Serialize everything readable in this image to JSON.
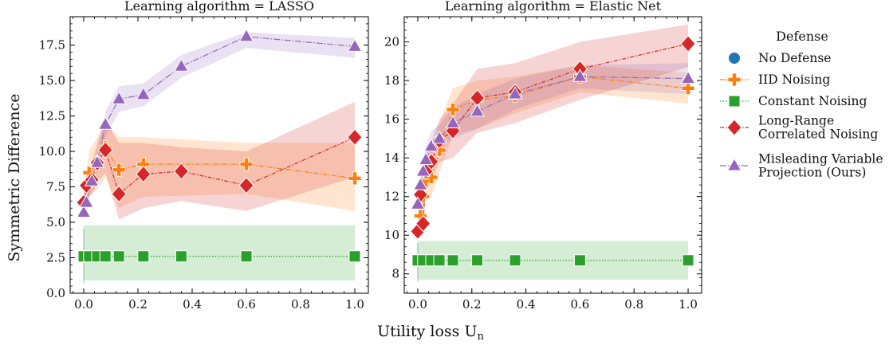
{
  "figure": {
    "xlabel": "Utility loss U",
    "xlabel_sub": "n",
    "ylabel": "Symmetric Difference"
  },
  "legend": {
    "title": "Defense",
    "entries": [
      {
        "key": "no_defense",
        "lines": [
          "No Defense"
        ]
      },
      {
        "key": "iid",
        "lines": [
          "IID Noising"
        ]
      },
      {
        "key": "constant",
        "lines": [
          "Constant Noising"
        ]
      },
      {
        "key": "long_range",
        "lines": [
          "Long-Range",
          "Correlated Noising"
        ]
      },
      {
        "key": "mvp",
        "lines": [
          "Misleading Variable",
          "Projection (Ours)"
        ]
      }
    ]
  },
  "styles": {
    "no_defense": {
      "color": "#1f77b4",
      "marker": "circle",
      "dash": "none"
    },
    "iid": {
      "color": "#ff7f0e",
      "marker": "plus",
      "dash": "6,2,1.5,2"
    },
    "constant": {
      "color": "#2ca02c",
      "marker": "square",
      "dash": "1.5,2"
    },
    "long_range": {
      "color": "#d62728",
      "marker": "diamond",
      "dash": "5,2,1.5,2"
    },
    "mvp": {
      "color": "#9467bd",
      "marker": "triangle",
      "dash": "8,2,1.5,2"
    }
  },
  "chart_data": [
    {
      "type": "line",
      "title": "Learning algorithm = LASSO",
      "xlim": [
        -0.05,
        1.05
      ],
      "ylim": [
        0.0,
        19.5
      ],
      "xticks": [
        "0.0",
        "0.2",
        "0.4",
        "0.6",
        "0.8",
        "1.0"
      ],
      "yticks": [
        "0.0",
        "2.5",
        "5.0",
        "7.5",
        "10.0",
        "12.5",
        "15.0",
        "17.5"
      ],
      "series": [
        {
          "key": "no_defense",
          "x": [
            0.0
          ],
          "y": [
            2.6
          ],
          "lower": [
            0.7
          ],
          "upper": [
            4.6
          ]
        },
        {
          "key": "constant",
          "x": [
            0.0,
            0.02,
            0.05,
            0.08,
            0.13,
            0.22,
            0.36,
            0.6,
            1.0
          ],
          "y": [
            2.6,
            2.6,
            2.6,
            2.6,
            2.6,
            2.6,
            2.6,
            2.6,
            2.6
          ],
          "lower": [
            0.9,
            0.9,
            0.9,
            0.9,
            0.9,
            0.9,
            0.9,
            0.9,
            0.9
          ],
          "upper": [
            4.8,
            4.8,
            4.8,
            4.8,
            4.8,
            4.8,
            4.8,
            4.8,
            4.8
          ]
        },
        {
          "key": "iid",
          "x": [
            0.0,
            0.02,
            0.05,
            0.08,
            0.13,
            0.22,
            0.6,
            1.0
          ],
          "y": [
            6.3,
            8.5,
            9.2,
            10.3,
            8.7,
            9.1,
            9.1,
            8.1
          ],
          "lower": [
            5.6,
            7.0,
            7.3,
            8.2,
            6.0,
            6.8,
            7.0,
            5.8
          ],
          "upper": [
            7.0,
            10.0,
            11.0,
            12.0,
            11.0,
            11.0,
            10.6,
            10.6
          ]
        },
        {
          "key": "long_range",
          "x": [
            0.0,
            0.01,
            0.03,
            0.05,
            0.08,
            0.13,
            0.22,
            0.36,
            0.6,
            1.0
          ],
          "y": [
            6.4,
            7.6,
            8.0,
            9.2,
            10.1,
            7.0,
            8.4,
            8.6,
            7.6,
            11.0
          ],
          "lower": [
            5.8,
            6.8,
            6.9,
            7.8,
            8.5,
            5.2,
            6.0,
            6.5,
            5.8,
            8.2
          ],
          "upper": [
            7.0,
            8.4,
            9.2,
            10.6,
            12.2,
            10.6,
            10.6,
            10.3,
            10.0,
            13.5
          ]
        },
        {
          "key": "mvp",
          "x": [
            0.0,
            0.01,
            0.03,
            0.05,
            0.08,
            0.13,
            0.22,
            0.36,
            0.6,
            1.0
          ],
          "y": [
            5.7,
            6.4,
            7.9,
            9.2,
            11.9,
            13.7,
            14.0,
            16.0,
            18.1,
            17.4
          ],
          "lower": [
            5.4,
            6.0,
            7.3,
            8.4,
            11.0,
            12.8,
            13.2,
            15.2,
            17.3,
            16.6
          ],
          "upper": [
            6.0,
            6.9,
            8.6,
            10.0,
            12.8,
            14.6,
            14.8,
            16.8,
            18.4,
            18.0
          ]
        }
      ]
    },
    {
      "type": "line",
      "title": "Learning algorithm = Elastic Net",
      "xlim": [
        -0.05,
        1.05
      ],
      "ylim": [
        7.0,
        21.3
      ],
      "xticks": [
        "0.0",
        "0.2",
        "0.4",
        "0.6",
        "0.8",
        "1.0"
      ],
      "yticks": [
        "8",
        "10",
        "12",
        "14",
        "16",
        "18",
        "20"
      ],
      "series": [
        {
          "key": "no_defense",
          "x": [
            0.0
          ],
          "y": [
            8.7
          ],
          "lower": [
            7.6
          ],
          "upper": [
            9.6
          ]
        },
        {
          "key": "constant",
          "x": [
            0.0,
            0.02,
            0.05,
            0.08,
            0.13,
            0.22,
            0.36,
            0.6,
            1.0
          ],
          "y": [
            8.7,
            8.7,
            8.7,
            8.7,
            8.7,
            8.7,
            8.7,
            8.7,
            8.7
          ],
          "lower": [
            7.7,
            7.7,
            7.7,
            7.7,
            7.7,
            7.7,
            7.7,
            7.7,
            7.7
          ],
          "upper": [
            9.7,
            9.7,
            9.7,
            9.7,
            9.7,
            9.7,
            9.7,
            9.7,
            9.7
          ]
        },
        {
          "key": "iid",
          "x": [
            0.01,
            0.02,
            0.03,
            0.05,
            0.08,
            0.13,
            0.22,
            0.36,
            0.6,
            1.0
          ],
          "y": [
            11.0,
            12.0,
            12.8,
            13.0,
            14.4,
            16.5,
            17.0,
            17.2,
            18.2,
            17.6
          ],
          "lower": [
            10.5,
            11.0,
            11.8,
            12.0,
            13.2,
            15.2,
            15.5,
            16.3,
            17.4,
            16.8
          ],
          "upper": [
            11.6,
            13.0,
            13.8,
            14.4,
            15.8,
            17.6,
            18.0,
            18.2,
            18.8,
            18.4
          ]
        },
        {
          "key": "long_range",
          "x": [
            0.0,
            0.01,
            0.02,
            0.03,
            0.05,
            0.08,
            0.13,
            0.22,
            0.36,
            0.6,
            1.0
          ],
          "y": [
            10.2,
            12.1,
            10.6,
            13.3,
            13.8,
            14.9,
            15.4,
            17.1,
            17.4,
            18.6,
            19.9
          ],
          "lower": [
            9.8,
            11.4,
            10.0,
            12.3,
            12.8,
            13.8,
            14.0,
            15.3,
            15.8,
            17.0,
            18.7
          ],
          "upper": [
            10.6,
            12.8,
            11.4,
            14.3,
            14.8,
            16.0,
            16.8,
            18.6,
            18.9,
            20.0,
            20.9
          ]
        },
        {
          "key": "mvp",
          "x": [
            0.0,
            0.01,
            0.02,
            0.03,
            0.05,
            0.08,
            0.13,
            0.22,
            0.36,
            0.6,
            1.0
          ],
          "y": [
            11.6,
            12.6,
            13.3,
            13.9,
            14.6,
            15.0,
            15.8,
            16.4,
            17.3,
            18.2,
            18.1
          ],
          "lower": [
            11.0,
            12.0,
            12.6,
            13.2,
            13.9,
            14.4,
            15.0,
            15.5,
            16.5,
            17.6,
            17.3
          ],
          "upper": [
            12.2,
            13.2,
            14.0,
            14.6,
            15.4,
            15.7,
            16.6,
            17.3,
            18.1,
            18.8,
            18.9
          ]
        }
      ]
    }
  ]
}
